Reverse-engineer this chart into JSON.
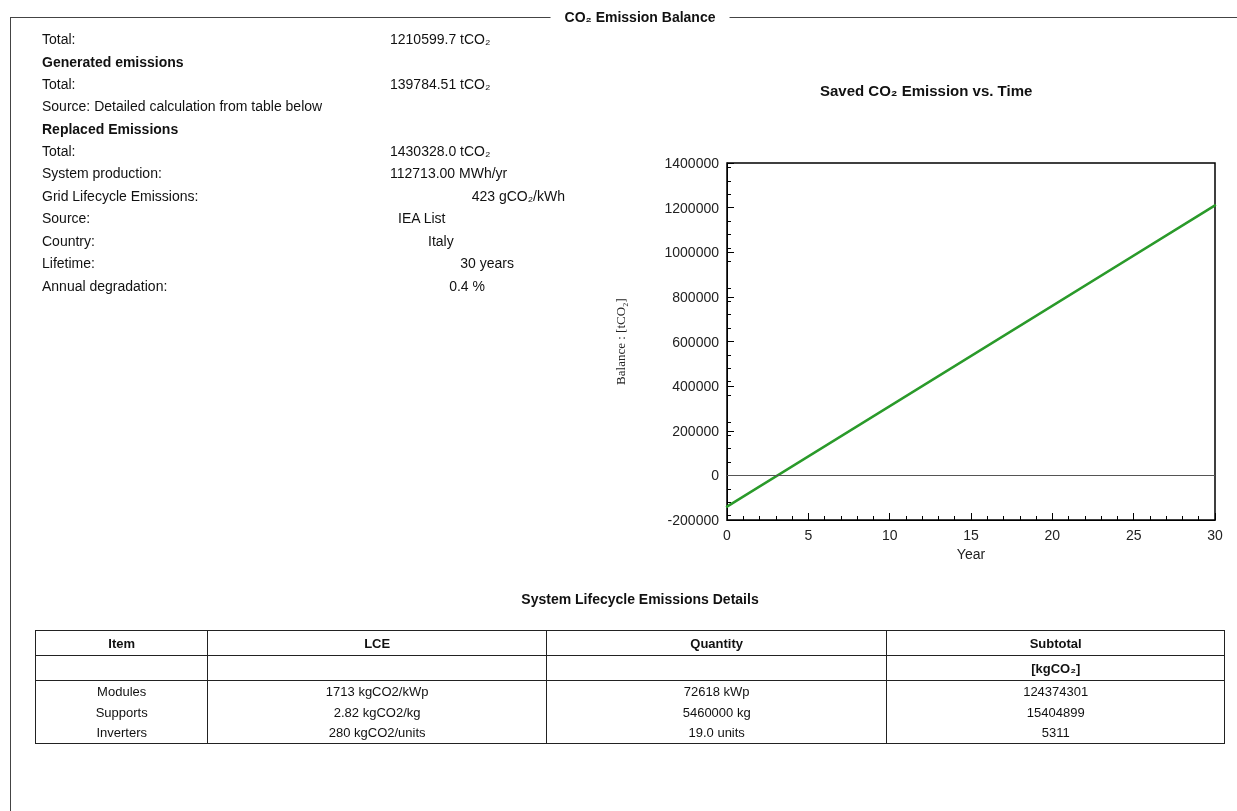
{
  "chart_data": {
    "type": "line",
    "title": "Saved CO₂ Emission vs. Time",
    "xlabel": "Year",
    "ylabel": "Balance : [tCO₂]",
    "x": [
      0,
      30
    ],
    "series": [
      {
        "color": "#2a9a2a",
        "values": [
          -140000,
          1210000
        ]
      }
    ],
    "xlim": [
      0,
      30
    ],
    "xticks": [
      0,
      5,
      10,
      15,
      20,
      25,
      30
    ],
    "ylim": [
      -200000,
      1400000
    ],
    "yticks": [
      -200000,
      0,
      200000,
      400000,
      600000,
      800000,
      1000000,
      1200000,
      1400000
    ],
    "ref_lines": [
      {
        "axis": "y",
        "value": 0,
        "color": "#555555"
      }
    ],
    "grid": false,
    "marker": "none",
    "line_style": "solid",
    "annotations": [
      "CO₂ Emission Balance",
      "Total:",
      "1210599.7 tCO₂",
      "Generated emissions",
      "Total:",
      "139784.51 tCO₂",
      "Source: Detailed calculation from table below",
      "Replaced Emissions",
      "Total:",
      "1430328.0 tCO₂",
      "System production:",
      "112713.00 MWh/yr",
      "Grid Lifecycle Emissions:",
      "423 gCO₂/kWh",
      "Source:",
      "IEA List",
      "Country:",
      "Italy",
      "Lifetime:",
      "30 years",
      "Annual degradation:",
      "0.4 %",
      "System Lifecycle Emissions Details",
      "Item",
      "LCE",
      "Quantity",
      "Subtotal",
      "[kgCO₂]",
      "Modules",
      "1713 kgCO2/kWp",
      "72618 kWp",
      "124374301",
      "Supports",
      "2.82 kgCO2/kg",
      "5460000 kg",
      "15404899",
      "Inverters",
      "280 kgCO2/units",
      "19.0 units",
      "5311"
    ]
  }
}
